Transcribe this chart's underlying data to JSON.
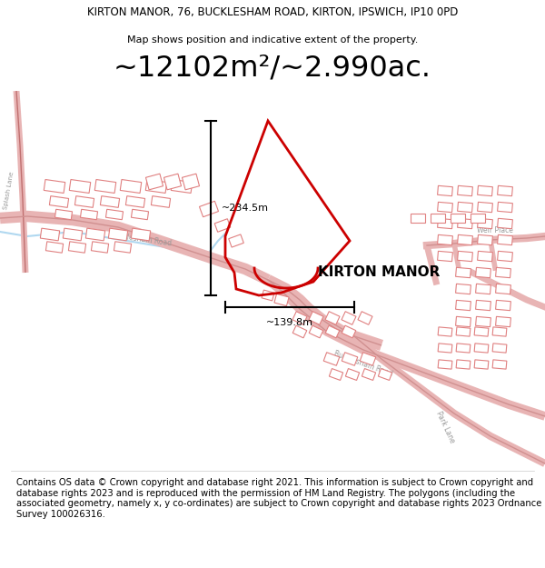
{
  "title_line1": "KIRTON MANOR, 76, BUCKLESHAM ROAD, KIRTON, IPSWICH, IP10 0PD",
  "title_line2": "Map shows position and indicative extent of the property.",
  "area_text": "~12102m²/~2.990ac.",
  "footer_text": "Contains OS data © Crown copyright and database right 2021. This information is subject to Crown copyright and database rights 2023 and is reproduced with the permission of HM Land Registry. The polygons (including the associated geometry, namely x, y co-ordinates) are subject to Crown copyright and database rights 2023 Ordnance Survey 100026316.",
  "property_label": "KIRTON MANOR",
  "dim_vertical": "~234.5m",
  "dim_horizontal": "~139.8m",
  "map_bg": "#ffffff",
  "road_color": "#e8b4b4",
  "road_edge_color": "#c07070",
  "building_color": "#e8b0b0",
  "building_edge": "#c87070",
  "property_outline_color": "#cc0000",
  "dim_line_color": "#1a1a1a",
  "title_fontsize": 8.5,
  "subtitle_fontsize": 8,
  "area_fontsize": 22,
  "label_fontsize": 11,
  "footer_fontsize": 7.2,
  "road_label_color": "#888888",
  "light_blue_line": "#add8e6"
}
